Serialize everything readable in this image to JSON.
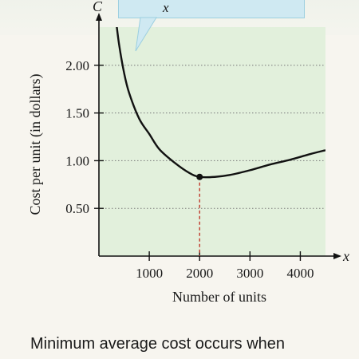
{
  "formula_fragment": "x",
  "caption": "Minimum average cost occurs when",
  "colors": {
    "plot_background": "#e2f0dc",
    "curve": "#111111",
    "min_marker_line": "#c0392b",
    "grid": "#777777"
  },
  "chart_data": {
    "type": "line",
    "title": "",
    "xlabel": "Number of units",
    "ylabel": "Cost per unit (in dollars)",
    "x_axis_letter": "x",
    "y_axis_letter": "C",
    "xlim": [
      0,
      4500
    ],
    "ylim": [
      0,
      2.4
    ],
    "x_ticks": [
      1000,
      2000,
      3000,
      4000
    ],
    "x_tick_labels": [
      "1000",
      "2000",
      "3000",
      "4000"
    ],
    "y_ticks": [
      0.5,
      1.0,
      1.5,
      2.0
    ],
    "y_tick_labels": [
      "0.50",
      "1.00",
      "1.50",
      "2.00"
    ],
    "grid": "horizontal dotted",
    "series": [
      {
        "x": [
          340,
          400,
          500,
          600,
          800,
          1000,
          1200,
          1500,
          1800,
          2000,
          2300,
          2600,
          3000,
          3400,
          3800,
          4200,
          4500
        ],
        "y": [
          2.47,
          2.22,
          1.92,
          1.71,
          1.44,
          1.28,
          1.12,
          0.98,
          0.87,
          0.83,
          0.83,
          0.85,
          0.9,
          0.96,
          1.01,
          1.07,
          1.11
        ]
      }
    ],
    "annotations": [
      {
        "type": "minimum-point",
        "x": 2000,
        "y": 0.83,
        "dashed_drop_line": true
      }
    ]
  }
}
